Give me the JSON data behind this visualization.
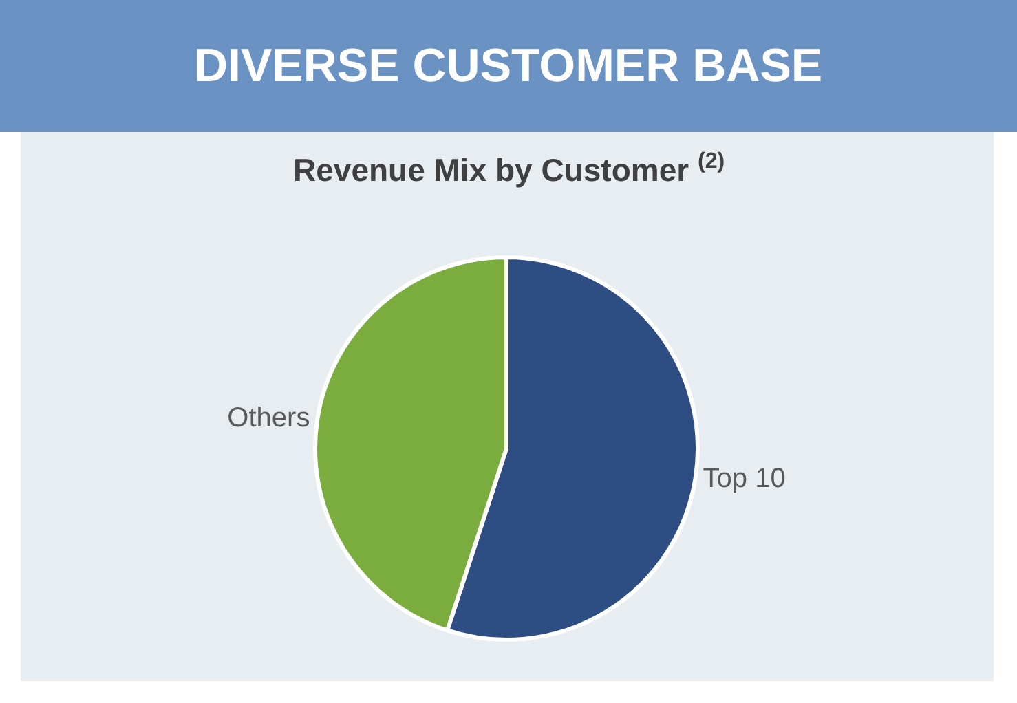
{
  "chart_data": {
    "type": "pie",
    "title": "DIVERSE CUSTOMER BASE",
    "subtitle": "Revenue Mix by Customer $^{(2)}$",
    "categories": [
      "Top 10",
      "Others"
    ],
    "values": [
      55,
      45
    ],
    "colors": [
      "#2e4d83",
      "#7aac3e"
    ],
    "legend": false
  }
}
